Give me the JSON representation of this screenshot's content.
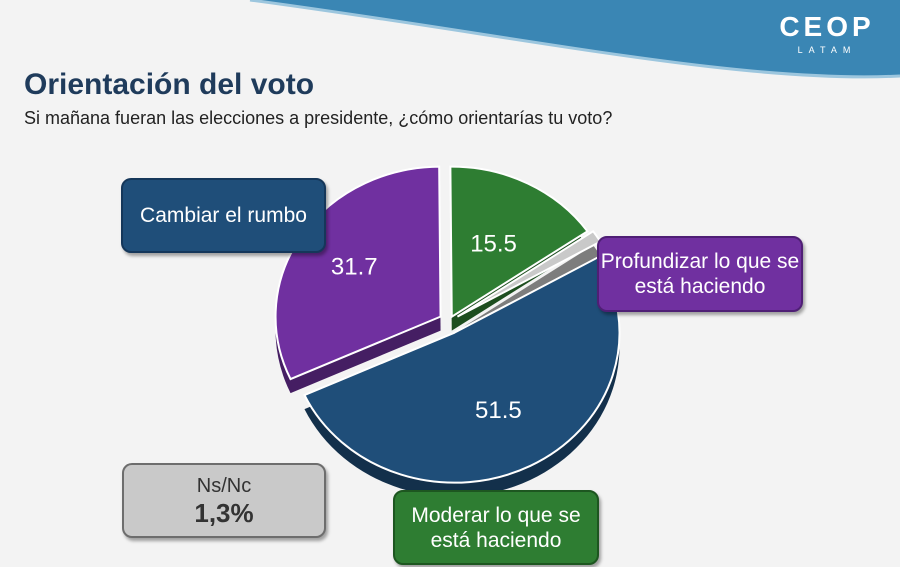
{
  "brand": {
    "name": "CEOP",
    "sub": "LATAM"
  },
  "title": "Orientación del voto",
  "subtitle": "Si mañana fueran las elecciones a presidente, ¿cómo orientarías tu voto?",
  "colors": {
    "band": "#3a86b4",
    "cambiar": "#1f4e79",
    "profundizar": "#7030a0",
    "moderar": "#2e7d32",
    "nsnc": "#c9c9c9"
  },
  "chart_data": {
    "type": "pie",
    "style": "3d-exploded",
    "slices": [
      {
        "key": "cambiar",
        "label": "Cambiar el rumbo",
        "value": 51.5,
        "value_label": "51.5",
        "color": "#1f4e79"
      },
      {
        "key": "profundizar",
        "label": "Profundizar lo que se está haciendo",
        "value": 31.7,
        "value_label": "31.7",
        "color": "#7030a0"
      },
      {
        "key": "moderar",
        "label": "Moderar lo que se está haciendo",
        "value": 15.5,
        "value_label": "15.5",
        "color": "#2e7d32"
      },
      {
        "key": "nsnc",
        "label": "Ns/Nc",
        "value": 1.3,
        "value_label": "1,3%",
        "color": "#c9c9c9"
      }
    ]
  }
}
